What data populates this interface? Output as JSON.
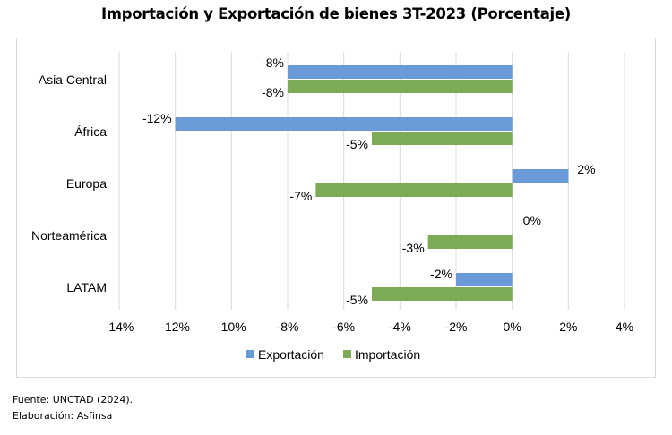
{
  "chart_data": {
    "type": "bar",
    "orientation": "horizontal",
    "title": "Importación y Exportación de bienes 3T-2023 (Porcentaje)",
    "categories": [
      "Asia Central",
      "África",
      "Europa",
      "Norteamérica",
      "LATAM"
    ],
    "series": [
      {
        "name": "Exportación",
        "color": "#6a9bd8",
        "values": [
          -8,
          -12,
          2,
          0,
          -2
        ],
        "labels": [
          "-8%",
          "-12%",
          "2%",
          "0%",
          "-2%"
        ]
      },
      {
        "name": "Importación",
        "color": "#7dab55",
        "values": [
          -8,
          -5,
          -7,
          -3,
          -5
        ],
        "labels": [
          "-8%",
          "-5%",
          "-7%",
          "-3%",
          "-5%"
        ]
      }
    ],
    "xlim": [
      -14,
      4
    ],
    "xticks": [
      -14,
      -12,
      -10,
      -8,
      -6,
      -4,
      -2,
      0,
      2,
      4
    ],
    "xtick_labels": [
      "-14%",
      "-12%",
      "-10%",
      "-8%",
      "-6%",
      "-4%",
      "-2%",
      "0%",
      "2%",
      "4%"
    ],
    "grid": true,
    "legend": "bottom"
  },
  "footer": {
    "source": "Fuente: UNCTAD (2024).",
    "elaboration": "Elaboración: Asfinsa"
  }
}
